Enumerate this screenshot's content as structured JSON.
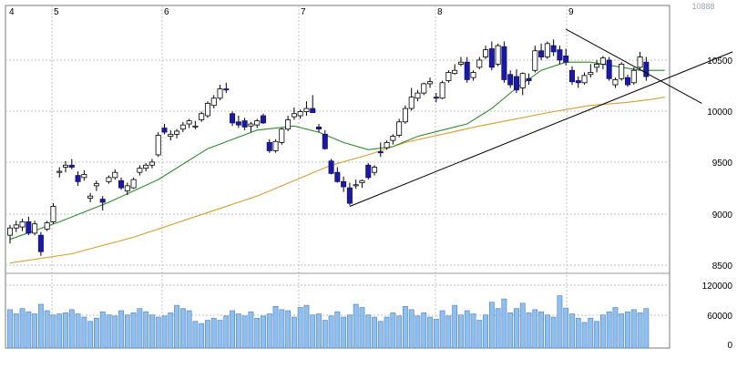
{
  "chart_data": {
    "type": "candlestick",
    "title": "",
    "x_month_labels": [
      "4",
      "5",
      "6",
      "7",
      "8",
      "9"
    ],
    "price_axis": {
      "ticks": [
        "10500",
        "10000",
        "9500",
        "9000",
        "8500"
      ],
      "ylim": [
        8350,
        10950
      ]
    },
    "volume_axis": {
      "ticks": [
        "120000",
        "60000",
        "0"
      ],
      "ylim": [
        0,
        140000
      ]
    },
    "top_right_label": "10888",
    "colors": {
      "up_candle_fill": "#ffffff",
      "down_candle_fill": "#1a1aa6",
      "ma_short": "#2e8b2e",
      "ma_long": "#d4a030",
      "volume_bar": "#8fbfef",
      "grid": "#c0c0c0",
      "trendline": "#000000"
    },
    "candles": [
      {
        "o": 8720,
        "h": 8820,
        "l": 8640,
        "c": 8790
      },
      {
        "o": 8790,
        "h": 8860,
        "l": 8750,
        "c": 8820
      },
      {
        "o": 8800,
        "h": 8880,
        "l": 8760,
        "c": 8850
      },
      {
        "o": 8850,
        "h": 8900,
        "l": 8720,
        "c": 8740
      },
      {
        "o": 8740,
        "h": 8860,
        "l": 8720,
        "c": 8830
      },
      {
        "o": 8720,
        "h": 8750,
        "l": 8520,
        "c": 8560
      },
      {
        "o": 8780,
        "h": 8860,
        "l": 8760,
        "c": 8840
      },
      {
        "o": 8850,
        "h": 9030,
        "l": 8830,
        "c": 9000
      },
      {
        "o": 9330,
        "h": 9380,
        "l": 9280,
        "c": 9340
      },
      {
        "o": 9380,
        "h": 9440,
        "l": 9330,
        "c": 9400
      },
      {
        "o": 9400,
        "h": 9460,
        "l": 9360,
        "c": 9380
      },
      {
        "o": 9300,
        "h": 9340,
        "l": 9200,
        "c": 9240
      },
      {
        "o": 9280,
        "h": 9350,
        "l": 9250,
        "c": 9310
      },
      {
        "o": 9080,
        "h": 9130,
        "l": 9040,
        "c": 9100
      },
      {
        "o": 9200,
        "h": 9250,
        "l": 9150,
        "c": 9220
      },
      {
        "o": 9070,
        "h": 9100,
        "l": 8960,
        "c": 9040
      },
      {
        "o": 9240,
        "h": 9300,
        "l": 9220,
        "c": 9280
      },
      {
        "o": 9280,
        "h": 9360,
        "l": 9260,
        "c": 9330
      },
      {
        "o": 9250,
        "h": 9280,
        "l": 9160,
        "c": 9180
      },
      {
        "o": 9150,
        "h": 9230,
        "l": 9110,
        "c": 9200
      },
      {
        "o": 9180,
        "h": 9280,
        "l": 9170,
        "c": 9260
      },
      {
        "o": 9330,
        "h": 9400,
        "l": 9300,
        "c": 9370
      },
      {
        "o": 9370,
        "h": 9420,
        "l": 9340,
        "c": 9400
      },
      {
        "o": 9400,
        "h": 9460,
        "l": 9370,
        "c": 9430
      },
      {
        "o": 9500,
        "h": 9720,
        "l": 9480,
        "c": 9690
      },
      {
        "o": 9760,
        "h": 9800,
        "l": 9700,
        "c": 9720
      },
      {
        "o": 9680,
        "h": 9740,
        "l": 9640,
        "c": 9700
      },
      {
        "o": 9700,
        "h": 9750,
        "l": 9660,
        "c": 9730
      },
      {
        "o": 9750,
        "h": 9820,
        "l": 9720,
        "c": 9790
      },
      {
        "o": 9800,
        "h": 9850,
        "l": 9760,
        "c": 9830
      },
      {
        "o": 9770,
        "h": 9830,
        "l": 9750,
        "c": 9780
      },
      {
        "o": 9840,
        "h": 9920,
        "l": 9820,
        "c": 9900
      },
      {
        "o": 9880,
        "h": 10020,
        "l": 9860,
        "c": 10000
      },
      {
        "o": 9980,
        "h": 10080,
        "l": 9950,
        "c": 10050
      },
      {
        "o": 10050,
        "h": 10180,
        "l": 10030,
        "c": 10140
      },
      {
        "o": 10140,
        "h": 10200,
        "l": 10100,
        "c": 10130
      },
      {
        "o": 9900,
        "h": 9920,
        "l": 9780,
        "c": 9810
      },
      {
        "o": 9820,
        "h": 9880,
        "l": 9760,
        "c": 9790
      },
      {
        "o": 9830,
        "h": 9860,
        "l": 9740,
        "c": 9770
      },
      {
        "o": 9780,
        "h": 9820,
        "l": 9720,
        "c": 9800
      },
      {
        "o": 9790,
        "h": 9850,
        "l": 9760,
        "c": 9830
      },
      {
        "o": 9880,
        "h": 9900,
        "l": 9800,
        "c": 9810
      },
      {
        "o": 9620,
        "h": 9650,
        "l": 9520,
        "c": 9540
      },
      {
        "o": 9540,
        "h": 9650,
        "l": 9520,
        "c": 9630
      },
      {
        "o": 9620,
        "h": 9760,
        "l": 9600,
        "c": 9750
      },
      {
        "o": 9750,
        "h": 9880,
        "l": 9730,
        "c": 9840
      },
      {
        "o": 9870,
        "h": 9960,
        "l": 9840,
        "c": 9900
      },
      {
        "o": 9880,
        "h": 9940,
        "l": 9850,
        "c": 9920
      },
      {
        "o": 9920,
        "h": 10020,
        "l": 9880,
        "c": 9950
      },
      {
        "o": 9950,
        "h": 10080,
        "l": 9930,
        "c": 9910
      },
      {
        "o": 9770,
        "h": 9800,
        "l": 9720,
        "c": 9750
      },
      {
        "o": 9700,
        "h": 9740,
        "l": 9550,
        "c": 9560
      },
      {
        "o": 9440,
        "h": 9460,
        "l": 9310,
        "c": 9320
      },
      {
        "o": 9330,
        "h": 9380,
        "l": 9230,
        "c": 9240
      },
      {
        "o": 9240,
        "h": 9290,
        "l": 9140,
        "c": 9190
      },
      {
        "o": 9180,
        "h": 9230,
        "l": 9010,
        "c": 9030
      },
      {
        "o": 9200,
        "h": 9260,
        "l": 9170,
        "c": 9210
      },
      {
        "o": 9230,
        "h": 9260,
        "l": 9180,
        "c": 9250
      },
      {
        "o": 9400,
        "h": 9420,
        "l": 9260,
        "c": 9280
      },
      {
        "o": 9330,
        "h": 9400,
        "l": 9300,
        "c": 9380
      },
      {
        "o": 9530,
        "h": 9620,
        "l": 9480,
        "c": 9520
      },
      {
        "o": 9570,
        "h": 9640,
        "l": 9550,
        "c": 9620
      },
      {
        "o": 9640,
        "h": 9700,
        "l": 9600,
        "c": 9680
      },
      {
        "o": 9690,
        "h": 9850,
        "l": 9670,
        "c": 9820
      },
      {
        "o": 9820,
        "h": 9980,
        "l": 9800,
        "c": 9950
      },
      {
        "o": 9950,
        "h": 10150,
        "l": 9930,
        "c": 10060
      },
      {
        "o": 10050,
        "h": 10130,
        "l": 10020,
        "c": 10100
      },
      {
        "o": 10100,
        "h": 10200,
        "l": 10080,
        "c": 10190
      },
      {
        "o": 10190,
        "h": 10250,
        "l": 10150,
        "c": 10210
      },
      {
        "o": 10060,
        "h": 10100,
        "l": 10010,
        "c": 10050
      },
      {
        "o": 10050,
        "h": 10220,
        "l": 10040,
        "c": 10200
      },
      {
        "o": 10220,
        "h": 10320,
        "l": 10200,
        "c": 10300
      },
      {
        "o": 10290,
        "h": 10380,
        "l": 10280,
        "c": 10320
      },
      {
        "o": 10380,
        "h": 10450,
        "l": 10360,
        "c": 10400
      },
      {
        "o": 10400,
        "h": 10450,
        "l": 10200,
        "c": 10230
      },
      {
        "o": 10250,
        "h": 10320,
        "l": 10220,
        "c": 10300
      },
      {
        "o": 10350,
        "h": 10450,
        "l": 10330,
        "c": 10420
      },
      {
        "o": 10450,
        "h": 10560,
        "l": 10430,
        "c": 10520
      },
      {
        "o": 10530,
        "h": 10600,
        "l": 10320,
        "c": 10350
      },
      {
        "o": 10380,
        "h": 10580,
        "l": 10360,
        "c": 10560
      },
      {
        "o": 10550,
        "h": 10600,
        "l": 10200,
        "c": 10230
      },
      {
        "o": 10280,
        "h": 10320,
        "l": 10150,
        "c": 10180
      },
      {
        "o": 10260,
        "h": 10330,
        "l": 10100,
        "c": 10130
      },
      {
        "o": 10150,
        "h": 10300,
        "l": 10080,
        "c": 10290
      },
      {
        "o": 10240,
        "h": 10290,
        "l": 10180,
        "c": 10220
      },
      {
        "o": 10320,
        "h": 10560,
        "l": 10300,
        "c": 10510
      },
      {
        "o": 10510,
        "h": 10580,
        "l": 10420,
        "c": 10450
      },
      {
        "o": 10450,
        "h": 10600,
        "l": 10430,
        "c": 10580
      },
      {
        "o": 10560,
        "h": 10620,
        "l": 10460,
        "c": 10500
      },
      {
        "o": 10520,
        "h": 10560,
        "l": 10380,
        "c": 10420
      },
      {
        "o": 10460,
        "h": 10530,
        "l": 10370,
        "c": 10400
      },
      {
        "o": 10320,
        "h": 10360,
        "l": 10180,
        "c": 10210
      },
      {
        "o": 10220,
        "h": 10260,
        "l": 10150,
        "c": 10200
      },
      {
        "o": 10200,
        "h": 10300,
        "l": 10180,
        "c": 10270
      },
      {
        "o": 10280,
        "h": 10380,
        "l": 10250,
        "c": 10300
      },
      {
        "o": 10350,
        "h": 10420,
        "l": 10300,
        "c": 10380
      },
      {
        "o": 10380,
        "h": 10460,
        "l": 10330,
        "c": 10440
      },
      {
        "o": 10420,
        "h": 10450,
        "l": 10220,
        "c": 10240
      },
      {
        "o": 10180,
        "h": 10250,
        "l": 10150,
        "c": 10230
      },
      {
        "o": 10240,
        "h": 10400,
        "l": 10220,
        "c": 10380
      },
      {
        "o": 10250,
        "h": 10280,
        "l": 10160,
        "c": 10180
      },
      {
        "o": 10200,
        "h": 10350,
        "l": 10180,
        "c": 10320
      },
      {
        "o": 10350,
        "h": 10500,
        "l": 10330,
        "c": 10450
      },
      {
        "o": 10400,
        "h": 10450,
        "l": 10220,
        "c": 10260
      }
    ],
    "ma_short": [
      [
        0,
        8680
      ],
      [
        8,
        8850
      ],
      [
        16,
        9040
      ],
      [
        24,
        9260
      ],
      [
        32,
        9560
      ],
      [
        40,
        9740
      ],
      [
        46,
        9780
      ],
      [
        50,
        9720
      ],
      [
        54,
        9620
      ],
      [
        58,
        9550
      ],
      [
        62,
        9580
      ],
      [
        66,
        9680
      ],
      [
        70,
        9740
      ],
      [
        74,
        9800
      ],
      [
        78,
        9950
      ],
      [
        82,
        10150
      ],
      [
        86,
        10320
      ],
      [
        90,
        10400
      ],
      [
        94,
        10400
      ],
      [
        98,
        10360
      ],
      [
        102,
        10320
      ],
      [
        106,
        10320
      ]
    ],
    "ma_long": [
      [
        0,
        8450
      ],
      [
        10,
        8540
      ],
      [
        20,
        8700
      ],
      [
        30,
        8900
      ],
      [
        40,
        9100
      ],
      [
        46,
        9250
      ],
      [
        52,
        9400
      ],
      [
        58,
        9500
      ],
      [
        64,
        9620
      ],
      [
        70,
        9700
      ],
      [
        76,
        9780
      ],
      [
        82,
        9850
      ],
      [
        88,
        9920
      ],
      [
        94,
        9980
      ],
      [
        100,
        10010
      ],
      [
        104,
        10040
      ],
      [
        106,
        10060
      ]
    ],
    "trendlines": [
      {
        "from": [
          55,
          9000
        ],
        "to": [
          117,
          10500
        ]
      },
      {
        "from": [
          90,
          10720
        ],
        "to": [
          112,
          10000
        ]
      }
    ],
    "volumes": [
      72000,
      64000,
      74000,
      68000,
      64000,
      82000,
      70000,
      62000,
      64000,
      66000,
      72000,
      64000,
      58000,
      50000,
      56000,
      68000,
      62000,
      60000,
      70000,
      62000,
      66000,
      74000,
      68000,
      62000,
      58000,
      60000,
      66000,
      80000,
      74000,
      70000,
      50000,
      46000,
      52000,
      56000,
      52000,
      60000,
      70000,
      64000,
      60000,
      68000,
      56000,
      60000,
      64000,
      78000,
      72000,
      70000,
      58000,
      76000,
      80000,
      62000,
      64000,
      52000,
      60000,
      68000,
      58000,
      62000,
      82000,
      76000,
      62000,
      58000,
      50000,
      58000,
      66000,
      60000,
      78000,
      72000,
      60000,
      66000,
      58000,
      54000,
      70000,
      60000,
      80000,
      62000,
      70000,
      64000,
      52000,
      62000,
      86000,
      74000,
      92000,
      66000,
      74000,
      84000,
      66000,
      72000,
      68000,
      62000,
      58000,
      98000,
      75000,
      64000,
      56000,
      48000,
      56000,
      50000,
      62000,
      68000,
      76000,
      64000,
      68000,
      72000,
      66000,
      74000,
      70000,
      65000
    ]
  }
}
